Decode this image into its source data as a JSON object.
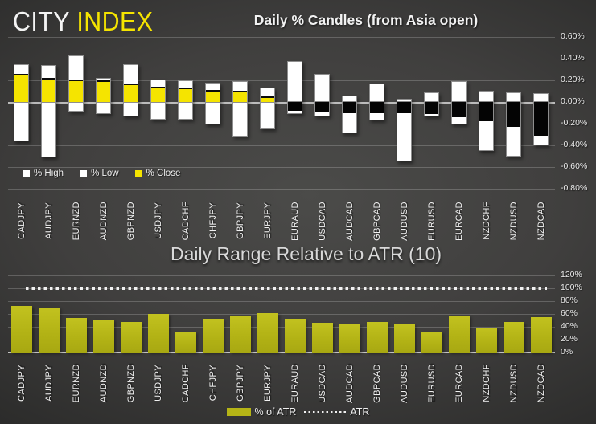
{
  "logo": {
    "city": "CITY",
    "index": "INDEX",
    "accent_color": "#f5e400"
  },
  "chart_data": [
    {
      "type": "bar",
      "title": "Daily % Candles (from Asia open)",
      "categories": [
        "CADJPY",
        "AUDJPY",
        "EURNZD",
        "AUDNZD",
        "GBPNZD",
        "USDJPY",
        "CADCHF",
        "CHFJPY",
        "GBPJPY",
        "EURJPY",
        "EURAUD",
        "USDCAD",
        "AUDCAD",
        "GBPCAD",
        "AUDUSD",
        "EURUSD",
        "EURCAD",
        "NZDCHF",
        "NZDUSD",
        "NZDCAD"
      ],
      "series": [
        {
          "name": "% High",
          "values": [
            0.35,
            0.34,
            0.43,
            0.22,
            0.35,
            0.21,
            0.2,
            0.18,
            0.19,
            0.13,
            0.38,
            0.26,
            0.06,
            0.17,
            0.03,
            0.09,
            0.19,
            0.1,
            0.09,
            0.08
          ]
        },
        {
          "name": "% Low",
          "values": [
            -0.36,
            -0.51,
            -0.09,
            -0.11,
            -0.13,
            -0.16,
            -0.16,
            -0.21,
            -0.32,
            -0.25,
            -0.11,
            -0.13,
            -0.29,
            -0.17,
            -0.55,
            -0.13,
            -0.21,
            -0.45,
            -0.5,
            -0.4
          ]
        },
        {
          "name": "% Close",
          "values": [
            0.26,
            0.22,
            0.21,
            0.2,
            0.17,
            0.14,
            0.13,
            0.11,
            0.1,
            0.05,
            -0.08,
            -0.09,
            -0.1,
            -0.1,
            -0.1,
            -0.11,
            -0.14,
            -0.18,
            -0.23,
            -0.31
          ]
        }
      ],
      "y_ticks": [
        "0.60%",
        "0.40%",
        "0.20%",
        "0.00%",
        "-0.20%",
        "-0.40%",
        "-0.60%",
        "-0.80%"
      ],
      "ylim": [
        -0.8,
        0.6
      ],
      "grid": true,
      "legend_position": "bottom-left",
      "legend": [
        {
          "label": "% High",
          "color": "#ffffff"
        },
        {
          "label": "% Low",
          "color": "#ffffff"
        },
        {
          "label": "% Close",
          "color": "#f5e400"
        }
      ],
      "colors": {
        "high": "#ffffff",
        "low": "#ffffff",
        "close_positive": "#f5e400",
        "close_negative": "#000000"
      }
    },
    {
      "type": "bar",
      "title": "Daily Range Relative to ATR (10)",
      "categories": [
        "CADJPY",
        "AUDJPY",
        "EURNZD",
        "AUDNZD",
        "GBPNZD",
        "USDJPY",
        "CADCHF",
        "CHFJPY",
        "GBPJPY",
        "EURJPY",
        "EURAUD",
        "USDCAD",
        "AUDCAD",
        "GBPCAD",
        "AUDUSD",
        "EURUSD",
        "EURCAD",
        "NZDCHF",
        "NZDUSD",
        "NZDCAD"
      ],
      "series": [
        {
          "name": "% of ATR",
          "values": [
            72,
            70,
            54,
            51,
            48,
            60,
            32,
            53,
            57,
            61,
            53,
            46,
            44,
            47,
            44,
            32,
            57,
            39,
            47,
            55
          ]
        },
        {
          "name": "ATR",
          "type": "dotted-line",
          "value": 100
        }
      ],
      "y_ticks": [
        "120%",
        "100%",
        "80%",
        "60%",
        "40%",
        "20%",
        "0%"
      ],
      "ylim": [
        0,
        120
      ],
      "grid": true,
      "legend_position": "bottom-center",
      "legend": [
        {
          "label": "% of ATR",
          "color": "#b5b416"
        },
        {
          "label": "ATR",
          "color": "#f0f0f0"
        }
      ],
      "bar_color": "#b5b416"
    }
  ]
}
